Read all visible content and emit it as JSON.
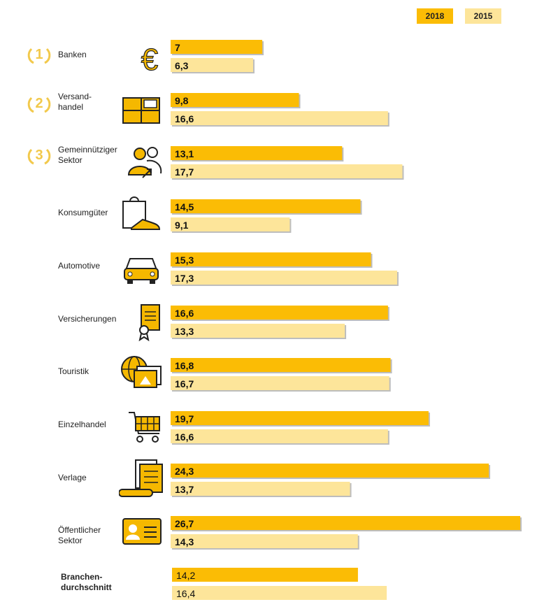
{
  "colors": {
    "y2018": "#fbbc05",
    "y2015": "#fde59a",
    "bar_shadow": "#bdbdbd",
    "icon_gold": "#f5b800",
    "rank_gold": "#f2c94c"
  },
  "legend": [
    "2018",
    "2015"
  ],
  "chart_data": {
    "type": "bar",
    "orientation": "horizontal",
    "categories": [
      "Banken",
      "Versand-\nhandel",
      "Gemeinnütziger\nSektor",
      "Konsumgüter",
      "Automotive",
      "Versicherungen",
      "Touristik",
      "Einzelhandel",
      "Verlage",
      "Öffentlicher\nSektor",
      "Branchen-\ndurchschnitt"
    ],
    "series": [
      {
        "name": "2018",
        "values": [
          7,
          9.8,
          13.1,
          14.5,
          15.3,
          16.6,
          16.8,
          19.7,
          24.3,
          26.7,
          14.2
        ]
      },
      {
        "name": "2015",
        "values": [
          6.3,
          16.6,
          17.7,
          9.1,
          17.3,
          13.3,
          16.7,
          16.6,
          13.7,
          14.3,
          16.4
        ]
      }
    ],
    "value_labels": {
      "2018": [
        "7",
        "9,8",
        "13,1",
        "14,5",
        "15,3",
        "16,6",
        "16,8",
        "19,7",
        "24,3",
        "26,7",
        "14,2"
      ],
      "2015": [
        "6,3",
        "16,6",
        "17,7",
        "9,1",
        "17,3",
        "13,3",
        "16,7",
        "16,6",
        "13,7",
        "14,3",
        "16,4"
      ]
    },
    "ranks": [
      "1",
      "2",
      "3"
    ],
    "icons": [
      "euro-icon",
      "package-icon",
      "people-referral-icon",
      "shopping-bag-shoe-icon",
      "car-icon",
      "insurance-certificate-icon",
      "globe-photo-icon",
      "shopping-cart-icon",
      "newspaper-icon",
      "id-card-icon"
    ],
    "xlim": [
      0,
      26.7
    ],
    "legend_position": "top-right",
    "grid": false
  }
}
